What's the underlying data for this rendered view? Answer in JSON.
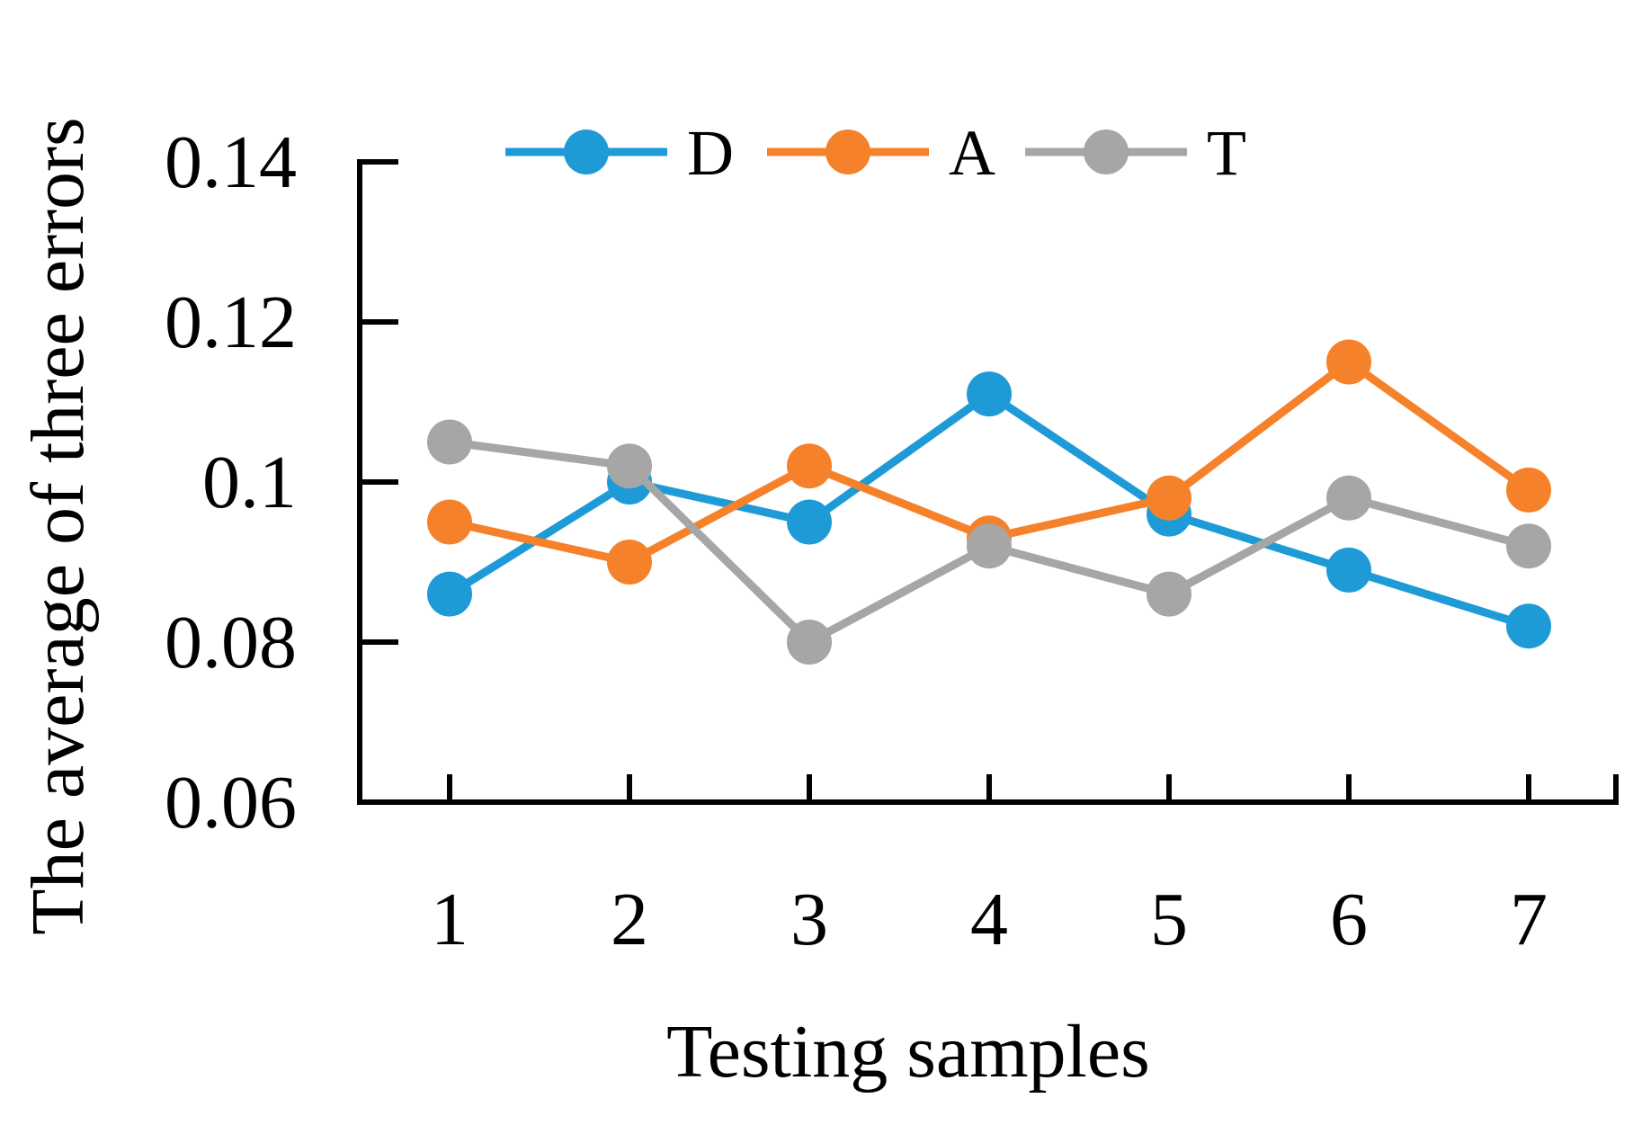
{
  "chart_data": {
    "type": "line",
    "title": "",
    "xlabel": "Testing samples",
    "ylabel": "The average of three errors",
    "x": [
      1,
      2,
      3,
      4,
      5,
      6,
      7
    ],
    "x_tick_labels": [
      "1",
      "2",
      "3",
      "4",
      "5",
      "6",
      "7"
    ],
    "ylim": [
      0.06,
      0.14
    ],
    "y_ticks": [
      0.06,
      0.08,
      0.1,
      0.12,
      0.14
    ],
    "y_tick_labels": [
      "0.06",
      "0.08",
      "0.1",
      "0.12",
      "0.14"
    ],
    "grid": false,
    "legend": {
      "position": "top",
      "entries": [
        "D",
        "A",
        "T"
      ]
    },
    "series": [
      {
        "name": "D",
        "color": "#1E9BD7",
        "values": [
          0.086,
          0.1,
          0.095,
          0.111,
          0.096,
          0.089,
          0.082
        ]
      },
      {
        "name": "A",
        "color": "#F5822A",
        "values": [
          0.095,
          0.09,
          0.102,
          0.093,
          0.098,
          0.115,
          0.099
        ]
      },
      {
        "name": "T",
        "color": "#A6A6A6",
        "values": [
          0.105,
          0.102,
          0.08,
          0.092,
          0.086,
          0.098,
          0.092
        ]
      }
    ]
  }
}
